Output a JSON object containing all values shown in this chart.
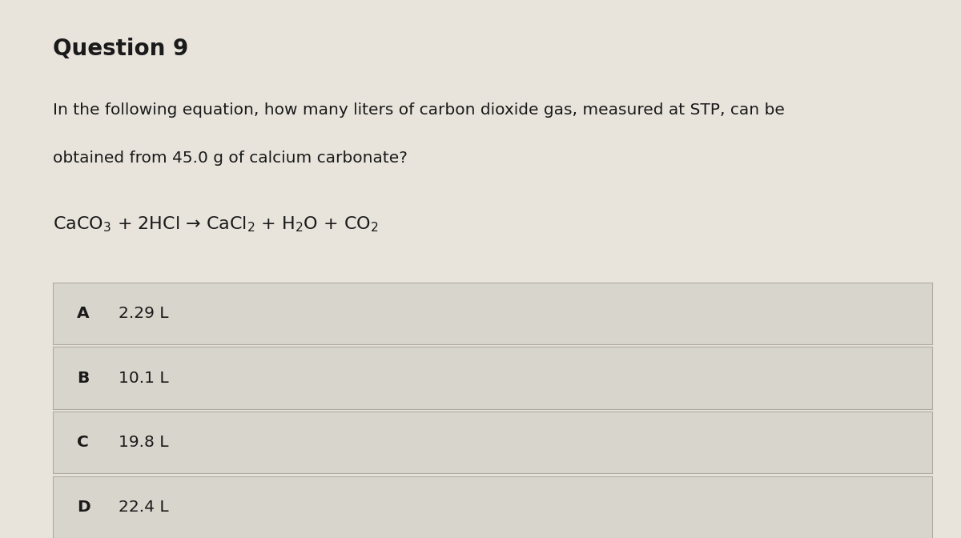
{
  "title": "Question 9",
  "question_text_line1": "In the following equation, how many liters of carbon dioxide gas, measured at STP, can be",
  "question_text_line2": "obtained from 45.0 g of calcium carbonate?",
  "equation": "CaCO$_{3}$ + 2HCl → CaCl$_{2}$ + H$_{2}$O + CO$_{2}$",
  "choices": [
    {
      "label": "A",
      "text": "2.29 L"
    },
    {
      "label": "B",
      "text": "10.1 L"
    },
    {
      "label": "C",
      "text": "19.8 L"
    },
    {
      "label": "D",
      "text": "22.4 L"
    }
  ],
  "bg_color": "#e8e4dc",
  "panel_color": "#d8d5cc",
  "box_edge_color": "#b0aca0",
  "text_color": "#1a1a1a",
  "title_fontsize": 20,
  "question_fontsize": 14.5,
  "equation_fontsize": 16,
  "choice_fontsize": 14.5,
  "label_fontsize": 14.5
}
